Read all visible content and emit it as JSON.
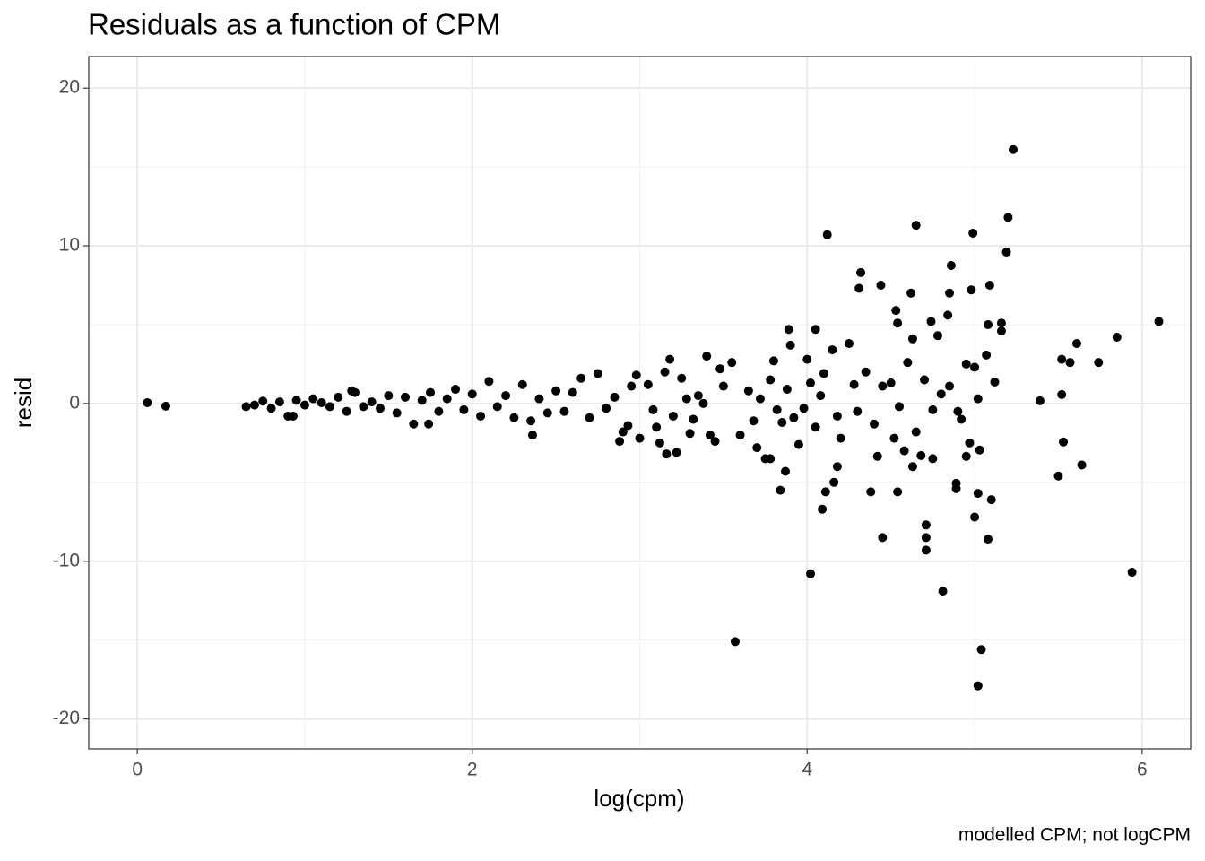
{
  "chart_data": {
    "type": "scatter",
    "title": "Residuals as a function of CPM",
    "x_label": "log(cpm)",
    "y_label": "resid",
    "caption": "modelled CPM; not logCPM",
    "color": "#000000",
    "grid": true,
    "xlim": [
      -0.29,
      6.29
    ],
    "ylim": [
      -21.9,
      22.0
    ],
    "xticks": [
      0,
      2,
      4,
      6
    ],
    "yticks": [
      -20,
      -10,
      0,
      10,
      20
    ],
    "x": [
      0.06,
      0.17,
      5.23,
      5.2,
      4.65,
      4.12,
      4.99,
      5.19,
      4.32,
      4.86,
      4.31,
      4.44,
      4.62,
      4.85,
      4.98,
      5.09,
      4.53,
      4.84,
      4.54,
      4.74,
      5.16,
      6.1,
      5.08,
      3.89,
      4.05,
      5.16,
      5.85,
      5.61,
      5.74,
      5.52,
      5.57,
      5.39,
      5.52,
      5.12,
      5.07,
      4.63,
      4.78,
      5.53,
      5.64,
      5.5,
      5.94,
      5.1,
      5.02,
      5.0,
      5.08,
      4.89,
      4.89,
      4.71,
      4.71,
      4.71,
      4.45,
      4.81,
      4.02,
      3.57,
      5.04,
      5.02,
      4.09,
      4.11,
      4.16,
      4.38,
      4.54,
      3.84,
      3.87,
      4.18,
      5.03,
      4.95,
      4.42,
      4.63,
      4.75,
      3.78,
      3.16,
      2.36,
      0.65,
      0.7,
      0.75,
      0.8,
      0.85,
      0.9,
      0.95,
      1.0,
      1.05,
      1.1,
      1.15,
      1.2,
      1.25,
      1.3,
      1.35,
      1.4,
      1.45,
      1.5,
      1.55,
      1.6,
      1.65,
      1.7,
      1.75,
      1.8,
      1.85,
      1.9,
      1.95,
      2.0,
      2.05,
      2.1,
      2.15,
      2.2,
      2.25,
      2.3,
      2.35,
      2.4,
      2.45,
      2.5,
      1.74,
      1.28,
      0.93,
      2.55,
      2.6,
      2.65,
      2.7,
      2.75,
      2.8,
      2.85,
      2.9,
      2.95,
      3.0,
      2.98,
      2.88,
      2.93,
      3.05,
      3.1,
      3.15,
      3.18,
      3.2,
      3.25,
      3.3,
      3.35,
      3.4,
      3.45,
      3.5,
      3.55,
      3.6,
      3.12,
      3.22,
      3.32,
      3.42,
      3.48,
      3.38,
      3.28,
      3.08,
      3.65,
      3.7,
      3.75,
      3.8,
      3.85,
      3.9,
      3.95,
      4.0,
      4.05,
      4.1,
      4.15,
      4.2,
      4.25,
      4.3,
      4.35,
      4.4,
      4.45,
      3.72,
      3.82,
      3.88,
      3.98,
      4.08,
      4.18,
      4.28,
      3.68,
      3.78,
      3.92,
      4.02,
      4.5,
      4.55,
      4.6,
      4.65,
      4.7,
      4.75,
      4.8,
      4.85,
      4.9,
      4.95,
      5.0,
      5.02,
      4.92,
      4.58,
      4.68,
      4.52,
      4.97
    ],
    "values": [
      0.05,
      -0.17,
      16.1,
      11.8,
      11.3,
      10.7,
      10.8,
      9.6,
      8.3,
      8.75,
      7.3,
      7.5,
      7.0,
      7.0,
      7.2,
      7.5,
      5.9,
      5.6,
      5.1,
      5.2,
      5.1,
      5.2,
      5.0,
      4.7,
      4.7,
      4.6,
      4.2,
      3.8,
      2.6,
      2.8,
      2.6,
      0.17,
      0.57,
      1.36,
      3.07,
      4.1,
      4.3,
      -2.44,
      -3.9,
      -4.6,
      -10.7,
      -6.1,
      -5.7,
      -7.2,
      -8.6,
      -5.06,
      -5.4,
      -7.7,
      -8.5,
      -9.3,
      -8.5,
      -11.9,
      -10.8,
      -15.1,
      -15.6,
      -17.9,
      -6.7,
      -5.6,
      -5.0,
      -5.6,
      -5.6,
      -5.5,
      -4.3,
      -4.0,
      -2.95,
      -3.35,
      -3.35,
      -4.0,
      -3.5,
      -3.5,
      -3.2,
      -2.0,
      -0.2,
      -0.1,
      0.15,
      -0.3,
      0.1,
      -0.8,
      0.2,
      -0.1,
      0.3,
      0.05,
      -0.2,
      0.4,
      -0.5,
      0.7,
      -0.2,
      0.1,
      -0.3,
      0.5,
      -0.6,
      0.4,
      -1.3,
      0.2,
      0.7,
      -0.5,
      0.3,
      0.9,
      -0.4,
      0.6,
      -0.8,
      1.4,
      -0.2,
      0.5,
      -0.9,
      1.2,
      -1.1,
      0.3,
      -0.6,
      0.8,
      -1.3,
      0.8,
      -0.8,
      -0.5,
      0.7,
      1.6,
      -0.9,
      1.9,
      -0.3,
      0.4,
      -1.8,
      1.1,
      -2.2,
      1.8,
      -2.4,
      -1.4,
      1.2,
      -1.5,
      2.0,
      2.8,
      -0.8,
      1.6,
      -1.9,
      0.5,
      3.0,
      -2.4,
      1.1,
      2.6,
      -2.0,
      -2.5,
      -3.1,
      -1.0,
      -2.0,
      2.2,
      0.0,
      0.3,
      -0.4,
      0.8,
      -2.8,
      -3.5,
      2.7,
      -1.2,
      3.7,
      -2.6,
      2.8,
      -1.5,
      1.9,
      3.4,
      -2.2,
      3.8,
      -0.5,
      2.0,
      -1.3,
      1.1,
      0.3,
      -0.4,
      0.9,
      -0.3,
      0.5,
      -0.8,
      1.2,
      -1.1,
      1.5,
      -0.9,
      1.3,
      1.3,
      -0.2,
      2.6,
      -1.8,
      1.5,
      -0.4,
      0.6,
      1.1,
      -0.5,
      2.5,
      2.3,
      0.3,
      -1.0,
      -3.0,
      -3.3,
      -2.2,
      -2.5
    ]
  }
}
